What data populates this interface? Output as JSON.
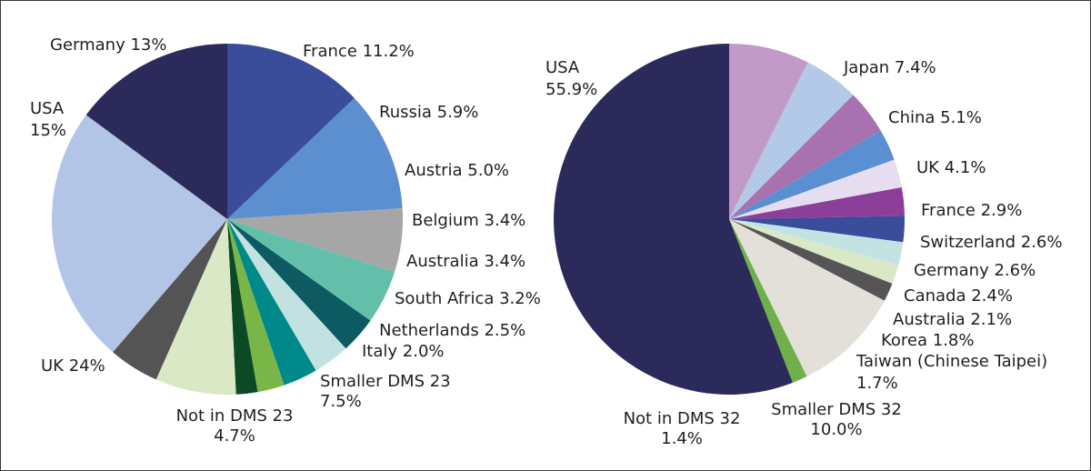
{
  "chart_data": [
    {
      "type": "pie",
      "slices": [
        {
          "label": "Germany 13%",
          "value": 13.0,
          "color": "#3a4d9a"
        },
        {
          "label": "France 11.2%",
          "value": 11.2,
          "color": "#5b8fd0"
        },
        {
          "label": "Russia 5.9%",
          "value": 5.9,
          "color": "#a6a6a6"
        },
        {
          "label": "Austria 5.0%",
          "value": 5.0,
          "color": "#63bfaa"
        },
        {
          "label": "Belgium 3.4%",
          "value": 3.4,
          "color": "#0d5a63"
        },
        {
          "label": "Australia 3.4%",
          "value": 3.4,
          "color": "#c2e2e2"
        },
        {
          "label": "South Africa 3.2%",
          "value": 3.2,
          "color": "#00898a"
        },
        {
          "label": "Netherlands 2.5%",
          "value": 2.5,
          "color": "#7ab547"
        },
        {
          "label": "Italy 2.0%",
          "value": 2.0,
          "color": "#0b4a24"
        },
        {
          "label": "Smaller DMS 23",
          "label2": "7.5%",
          "value": 7.5,
          "color": "#dbe8c6"
        },
        {
          "label": "Not in DMS 23",
          "label2": "4.7%",
          "value": 4.7,
          "color": "#545454"
        },
        {
          "label": "UK 24%",
          "value": 24.0,
          "color": "#b3c5e6"
        },
        {
          "label": "USA",
          "label2": "15%",
          "value": 15.0,
          "color": "#2b2a5b"
        }
      ]
    },
    {
      "type": "pie",
      "slices": [
        {
          "label": "Japan 7.4%",
          "value": 7.4,
          "color": "#c19ac7"
        },
        {
          "label": "China 5.1%",
          "value": 5.1,
          "color": "#b4c8e8"
        },
        {
          "label": "UK 4.1%",
          "value": 4.1,
          "color": "#a872b0"
        },
        {
          "label": "France 2.9%",
          "value": 2.9,
          "color": "#5a8fd2"
        },
        {
          "label": "Switzerland 2.6%",
          "value": 2.6,
          "color": "#e6def0"
        },
        {
          "label": "Germany 2.6%",
          "value": 2.6,
          "color": "#8c3f99"
        },
        {
          "label": "Canada 2.4%",
          "value": 2.4,
          "color": "#3a4d9a"
        },
        {
          "label": "Australia 2.1%",
          "value": 2.1,
          "color": "#c3e3e3"
        },
        {
          "label": "Korea 1.8%",
          "value": 1.8,
          "color": "#dbe8c6"
        },
        {
          "label": "Taiwan (Chinese Taipei)",
          "label2": "1.7%",
          "value": 1.7,
          "color": "#555555"
        },
        {
          "label": "Smaller DMS 32",
          "label2": "10.0%",
          "value": 10.0,
          "color": "#e3dfd9"
        },
        {
          "label": "Not in DMS 32",
          "label2": "1.4%",
          "value": 1.4,
          "color": "#6fb04c"
        },
        {
          "label": "USA",
          "label2": "55.9%",
          "value": 55.9,
          "color": "#2b2a5b"
        }
      ]
    }
  ]
}
